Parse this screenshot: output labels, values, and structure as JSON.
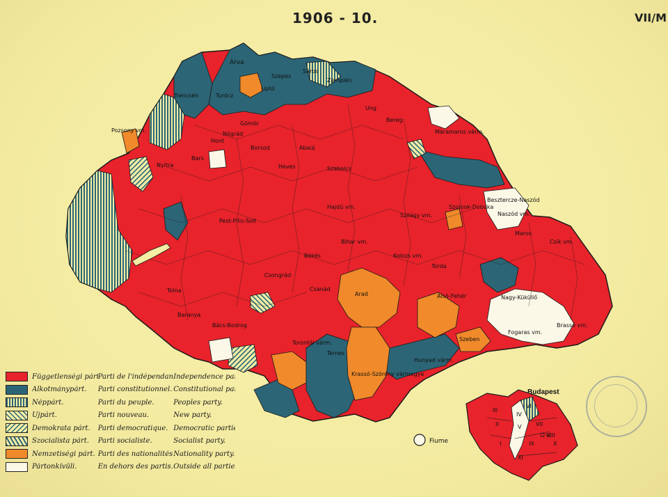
{
  "map": {
    "title": "1906 - 10.",
    "sheet_number": "VII/M",
    "inset_title": "Budapest",
    "fiume_label": "Fiume",
    "inset_districts": [
      "III",
      "II",
      "VII",
      "I",
      "IX",
      "IV",
      "X",
      "VIII",
      "VI",
      "V",
      "XI",
      "I2-X"
    ],
    "county_labels": [
      "Árva",
      "Zemplén",
      "Pozsony vm.",
      "Máramaros várm.",
      "Besztercze-Naszód",
      "Naszód vm.",
      "Szolnok-Doboka",
      "Maros",
      "Csík vm.",
      "Kolozs vm.",
      "Torda",
      "Alsó-Fehér",
      "Nagy-Küküllő",
      "Szeben",
      "Fogaras vm.",
      "Brassó vm.",
      "Hunyad várm.",
      "Krassó-Szörény vármegye",
      "Temes",
      "Torontál várm.",
      "Bács-Bodrog",
      "Arad",
      "Csanád",
      "Békés",
      "Bihar vm.",
      "Hajdú vm.",
      "Szilágy vm.",
      "Szabolcs",
      "Heves",
      "Pest-Pilis-Solt",
      "Tolna",
      "Baranya",
      "Csongrád",
      "Bereg",
      "Ung",
      "Sáros",
      "Abaúj",
      "Borsod",
      "Gömör",
      "Nógrád",
      "Hont",
      "Bars",
      "Nyitra",
      "Trencsén",
      "Turócz",
      "Liptó",
      "Szepes"
    ],
    "colors": {
      "independence": "#e8232b",
      "constitutional": "#2c6576",
      "nationality": "#f08a2a",
      "outside": "#fbf8e8",
      "paper": "#f5efa6",
      "border": "#1a1a1a"
    }
  },
  "legend": {
    "items": [
      {
        "hu": "Függetlenségi párt.",
        "fr": "Parti de l'indépendance.",
        "en": "Independence party.",
        "swatch": "independence"
      },
      {
        "hu": "Alkotmánypárt.",
        "fr": "Parti constitutionnel.",
        "en": "Constitutional party.",
        "swatch": "constitutional"
      },
      {
        "hu": "Néppárt.",
        "fr": "Parti du peuple.",
        "en": "Peoples party.",
        "swatch": "peoples-hatch"
      },
      {
        "hu": "Ujpárt.",
        "fr": "Parti nouveau.",
        "en": "New party.",
        "swatch": "new-hatch"
      },
      {
        "hu": "Demokrata párt.",
        "fr": "Parti democratique.",
        "en": "Democratic parties.",
        "swatch": "democratic-hatch"
      },
      {
        "hu": "Szocialista párt.",
        "fr": "Parti socialiste.",
        "en": "Socialist party.",
        "swatch": "socialist-hatch"
      },
      {
        "hu": "Nemzetiségi párt.",
        "fr": "Parti des nationalités.",
        "en": "Nationality party.",
        "swatch": "nationality"
      },
      {
        "hu": "Pártonkívüli.",
        "fr": "En dehors des partis.",
        "en": "Outside all parties.",
        "swatch": "outside"
      }
    ]
  }
}
